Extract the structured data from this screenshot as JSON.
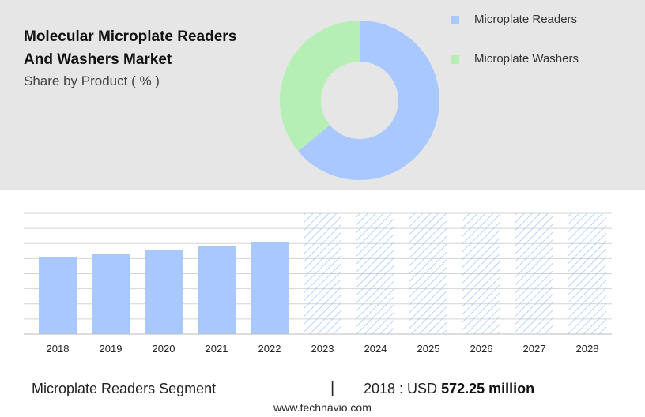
{
  "header": {
    "title_line1": "Molecular Microplate Readers",
    "title_line2": "And Washers Market",
    "subtitle": "Share by Product ( % )"
  },
  "colors": {
    "readers": "#a9c8ff",
    "washers": "#b5efb5",
    "hatch": "#a9c8ff",
    "grid": "#d4d4d4"
  },
  "chart_data": [
    {
      "type": "pie",
      "donut": true,
      "categories": [
        "Microplate Readers",
        "Microplate Washers"
      ],
      "values": [
        64,
        36
      ],
      "legend": [
        "Microplate Readers",
        "Microplate Washers"
      ],
      "legend_position": "right"
    },
    {
      "type": "bar",
      "categories": [
        "2018",
        "2019",
        "2020",
        "2021",
        "2022",
        "2023",
        "2024",
        "2025",
        "2026",
        "2027",
        "2028"
      ],
      "values": [
        572.25,
        596,
        625,
        655,
        688,
        null,
        null,
        null,
        null,
        null,
        null
      ],
      "forecast_categories": [
        "2023",
        "2024",
        "2025",
        "2026",
        "2027",
        "2028"
      ],
      "ylim": [
        0,
        900
      ],
      "grid": true
    }
  ],
  "footer": {
    "segment": "Microplate Readers Segment",
    "separator": "|",
    "year_label": "2018 : USD",
    "value": "572.25 million",
    "website": "www.technavio.com"
  }
}
